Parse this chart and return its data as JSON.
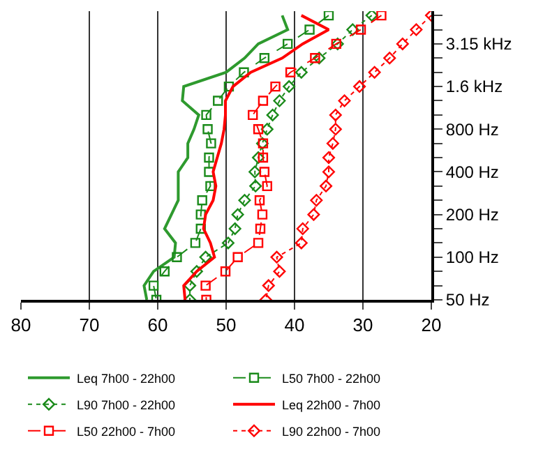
{
  "chart_data": {
    "type": "line",
    "orientation": "horizontal",
    "categories": [
      null,
      null,
      "3.15 kHz",
      null,
      null,
      "1.6 kHz",
      null,
      null,
      "800 Hz",
      null,
      null,
      "400 Hz",
      null,
      null,
      "200 Hz",
      null,
      null,
      "100 Hz",
      null,
      null,
      "50 Hz"
    ],
    "xlim": [
      80,
      20
    ],
    "xticks": [
      80,
      70,
      60,
      50,
      40,
      30,
      20
    ],
    "grid": "x",
    "legend": "bottom",
    "series": [
      {
        "name": "Leq 7h00 - 22h00",
        "color": "#2e9a2e",
        "marker": "none",
        "line_style": "solid",
        "values": [
          41.8,
          41,
          45.3,
          47.3,
          50,
          56.2,
          56.4,
          54,
          54.7,
          55.6,
          55.6,
          57,
          57,
          57,
          58,
          59,
          57.4,
          57.6,
          60.6,
          62,
          61.6
        ]
      },
      {
        "name": "L50 7h00 - 22h00",
        "color": "#1a8a1a",
        "marker": "square",
        "line_style": "dashed",
        "values": [
          35,
          37.8,
          41,
          44.4,
          47.4,
          49.6,
          51.2,
          52.9,
          52.7,
          52.2,
          52.5,
          52.5,
          52.3,
          53.5,
          53.7,
          53.7,
          54.5,
          57.2,
          59,
          60.6,
          60.2
        ]
      },
      {
        "name": "L90 7h00 - 22h00",
        "color": "#1a8a1a",
        "marker": "diamond",
        "line_style": "dotted",
        "values": [
          28.7,
          31.5,
          33.7,
          36.4,
          39,
          40.8,
          42.2,
          43.2,
          44,
          44.7,
          45.3,
          45.8,
          45.7,
          47.3,
          48.3,
          48.7,
          49.7,
          53,
          54.3,
          55.3,
          55.3
        ]
      },
      {
        "name": "Leq 22h00 - 7h00",
        "color": "#ff0000",
        "marker": "none",
        "line_style": "solid",
        "values": [
          39,
          35,
          38.8,
          41.8,
          46.4,
          49,
          50.1,
          50.1,
          50.3,
          50.7,
          51.3,
          51.9,
          51.5,
          51.9,
          53,
          53.3,
          52.3,
          51.7,
          54.3,
          56.2,
          56
        ]
      },
      {
        "name": "L50 22h00 - 7h00",
        "color": "#ff0000",
        "marker": "square",
        "line_style": "dashed",
        "values": [
          27.3,
          30.3,
          33.9,
          37,
          40.6,
          42.8,
          44.6,
          46.1,
          45.3,
          44.6,
          44.6,
          44.4,
          44,
          45.1,
          44.7,
          45,
          45.3,
          48.3,
          50.1,
          53,
          52.9
        ]
      },
      {
        "name": "L90 22h00 - 7h00",
        "color": "#ff0000",
        "marker": "diamond",
        "line_style": "dotted",
        "values": [
          20,
          22.2,
          24.2,
          26.1,
          28.3,
          30.5,
          32.7,
          34,
          34,
          34.4,
          35,
          35,
          35.4,
          36.8,
          37.2,
          38.8,
          39,
          42.6,
          42.2,
          43.8,
          44.2
        ]
      }
    ]
  }
}
